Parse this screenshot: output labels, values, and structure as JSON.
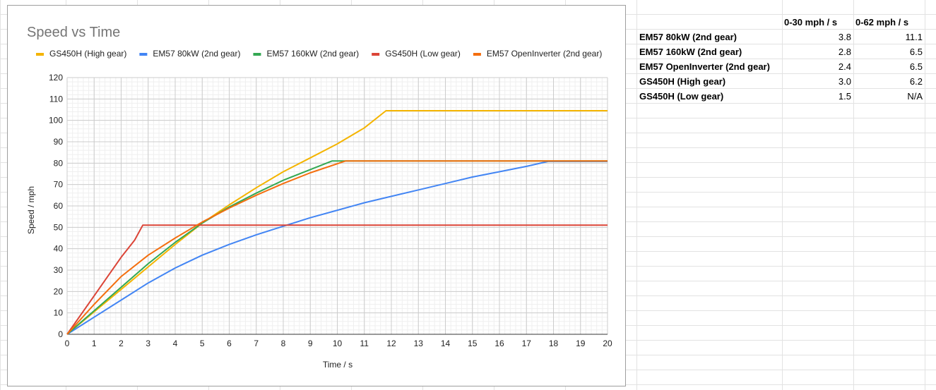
{
  "table": {
    "headers": [
      "",
      "0-30 mph / s",
      "0-62 mph / s"
    ],
    "rows": [
      {
        "label": "EM57 80kW (2nd gear)",
        "v1": "3.8",
        "v2": "11.1"
      },
      {
        "label": "EM57 160kW (2nd gear)",
        "v1": "2.8",
        "v2": "6.5"
      },
      {
        "label": "EM57 OpenInverter (2nd gear)",
        "v1": "2.4",
        "v2": "6.5"
      },
      {
        "label": "GS450H (High gear)",
        "v1": "3.0",
        "v2": "6.2"
      },
      {
        "label": "GS450H (Low gear)",
        "v1": "1.5",
        "v2": "N/A"
      }
    ]
  },
  "chart_data": {
    "type": "line",
    "title": "Speed vs Time",
    "xlabel": "Time / s",
    "ylabel": "Speed / mph",
    "xlim": [
      0,
      20
    ],
    "ylim": [
      0,
      120
    ],
    "xticks": [
      "0",
      "1",
      "2",
      "3",
      "4",
      "5",
      "6",
      "7",
      "8",
      "9",
      "10",
      "11",
      "12",
      "13",
      "14",
      "15",
      "16",
      "17",
      "18",
      "19",
      "20"
    ],
    "yticks": [
      "0",
      "10",
      "20",
      "30",
      "40",
      "50",
      "60",
      "70",
      "80",
      "90",
      "100",
      "110",
      "120"
    ],
    "grid": true,
    "minor_grid": true,
    "legend_position": "top",
    "series": [
      {
        "name": "GS450H (High gear)",
        "color": "#f4b400",
        "points": [
          [
            0,
            0
          ],
          [
            1,
            10.5
          ],
          [
            2,
            21
          ],
          [
            3,
            31.5
          ],
          [
            4,
            42
          ],
          [
            5,
            52
          ],
          [
            6,
            60.5
          ],
          [
            7,
            68.5
          ],
          [
            8,
            76
          ],
          [
            9,
            82.5
          ],
          [
            10,
            89
          ],
          [
            11,
            96.5
          ],
          [
            11.8,
            104.5
          ],
          [
            20,
            104.5
          ]
        ]
      },
      {
        "name": "EM57 80kW (2nd gear)",
        "color": "#4285f4",
        "points": [
          [
            0,
            0
          ],
          [
            1,
            8
          ],
          [
            2,
            16
          ],
          [
            3,
            24
          ],
          [
            4,
            31
          ],
          [
            5,
            37
          ],
          [
            6,
            42
          ],
          [
            7,
            46.5
          ],
          [
            8,
            50.5
          ],
          [
            9,
            54.5
          ],
          [
            10,
            58
          ],
          [
            11,
            61.5
          ],
          [
            12,
            64.5
          ],
          [
            13,
            67.5
          ],
          [
            14,
            70.5
          ],
          [
            15,
            73.5
          ],
          [
            16,
            76
          ],
          [
            17,
            78.5
          ],
          [
            17.8,
            80.8
          ],
          [
            20,
            80.8
          ]
        ]
      },
      {
        "name": "EM57 160kW (2nd gear)",
        "color": "#34a853",
        "points": [
          [
            0,
            0
          ],
          [
            1,
            11
          ],
          [
            2,
            22
          ],
          [
            3,
            33
          ],
          [
            4,
            43
          ],
          [
            5,
            52
          ],
          [
            6,
            59.5
          ],
          [
            7,
            66
          ],
          [
            8,
            72
          ],
          [
            9,
            77
          ],
          [
            9.8,
            81
          ],
          [
            20,
            81
          ]
        ]
      },
      {
        "name": "GS450H (Low gear)",
        "color": "#db4437",
        "points": [
          [
            0,
            0
          ],
          [
            1,
            18
          ],
          [
            1.5,
            27
          ],
          [
            2,
            36
          ],
          [
            2.5,
            44
          ],
          [
            2.8,
            51
          ],
          [
            20,
            51
          ]
        ]
      },
      {
        "name": "EM57 OpenInverter (2nd gear)",
        "color": "#f46e0e",
        "points": [
          [
            0,
            0
          ],
          [
            1,
            14
          ],
          [
            2,
            27
          ],
          [
            3,
            37
          ],
          [
            4,
            45
          ],
          [
            5,
            52.5
          ],
          [
            6,
            59
          ],
          [
            7,
            65
          ],
          [
            8,
            70.5
          ],
          [
            9,
            75.5
          ],
          [
            10.3,
            81
          ],
          [
            20,
            81
          ]
        ]
      }
    ]
  }
}
